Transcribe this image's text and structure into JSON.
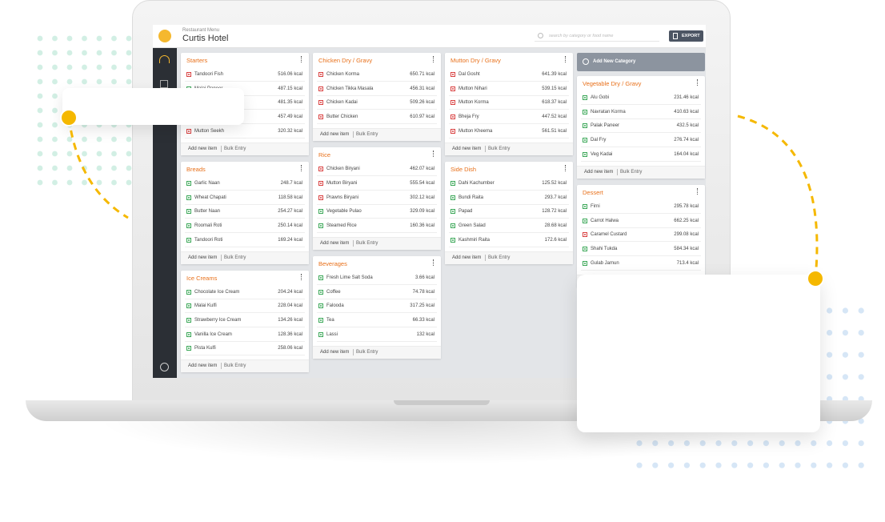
{
  "header": {
    "subtitle": "Restaurant Menu",
    "title": "Curtis Hotel",
    "search_placeholder": "search by category or food name",
    "export": "EXPORT"
  },
  "add_category": "Add New Category",
  "card_actions": {
    "add": "Add new item",
    "bulk": "Bulk Entry"
  },
  "columns": [
    [
      {
        "title": "Starters",
        "items": [
          {
            "name": "Tandoori Fish",
            "kcal": "516.06 kcal",
            "veg": false
          },
          {
            "name": "Malai Paneer",
            "kcal": "487.15 kcal",
            "veg": true
          },
          {
            "kcal": "481.35 kcal",
            "veg": false
          },
          {
            "kcal": "457.49 kcal",
            "veg": false
          },
          {
            "name": "Mutton Seekh",
            "kcal": "320.32 kcal",
            "veg": false
          }
        ]
      },
      {
        "title": "Breads",
        "items": [
          {
            "name": "Garlic Naan",
            "kcal": "248.7 kcal",
            "veg": true
          },
          {
            "name": "Wheat Chapati",
            "kcal": "118.58 kcal",
            "veg": true
          },
          {
            "name": "Butter Naan",
            "kcal": "254.27 kcal",
            "veg": true
          },
          {
            "name": "Roomali Roti",
            "kcal": "250.14 kcal",
            "veg": true
          },
          {
            "name": "Tandoori Roti",
            "kcal": "169.24 kcal",
            "veg": true
          }
        ]
      },
      {
        "title": "Ice Creams",
        "items": [
          {
            "name": "Chocolate Ice Cream",
            "kcal": "204.24 kcal",
            "veg": true
          },
          {
            "name": "Malai Kulfi",
            "kcal": "228.04 kcal",
            "veg": true
          },
          {
            "name": "Strawberry Ice Cream",
            "kcal": "134.26 kcal",
            "veg": true
          },
          {
            "name": "Vanilla Ice Cream",
            "kcal": "128.36 kcal",
            "veg": true
          },
          {
            "name": "Pista Kulfi",
            "kcal": "258.06 kcal",
            "veg": true
          }
        ]
      }
    ],
    [
      {
        "title": "Chicken Dry / Gravy",
        "items": [
          {
            "name": "Chicken Korma",
            "kcal": "650.71 kcal",
            "veg": false
          },
          {
            "name": "Chicken Tikka Masala",
            "kcal": "456.31 kcal",
            "veg": false
          },
          {
            "name": "Chicken Kadai",
            "kcal": "509.26 kcal",
            "veg": false
          },
          {
            "name": "Butter Chicken",
            "kcal": "610.97 kcal",
            "veg": false
          }
        ]
      },
      {
        "title": "Rice",
        "items": [
          {
            "name": "Chicken Biryani",
            "kcal": "462.07 kcal",
            "veg": false
          },
          {
            "name": "Mutton Biryani",
            "kcal": "555.54 kcal",
            "veg": false
          },
          {
            "name": "Prawns Biryani",
            "kcal": "302.12 kcal",
            "veg": false
          },
          {
            "name": "Vegetable Pulao",
            "kcal": "329.09 kcal",
            "veg": true
          },
          {
            "name": "Steamed Rice",
            "kcal": "160.36 kcal",
            "veg": true
          }
        ]
      },
      {
        "title": "Beverages",
        "items": [
          {
            "name": "Fresh Lime Salt Soda",
            "kcal": "3.66 kcal",
            "veg": true
          },
          {
            "name": "Coffee",
            "kcal": "74.78 kcal",
            "veg": true
          },
          {
            "name": "Falooda",
            "kcal": "317.25 kcal",
            "veg": true
          },
          {
            "name": "Tea",
            "kcal": "66.33 kcal",
            "veg": true
          },
          {
            "name": "Lassi",
            "kcal": "132 kcal",
            "veg": true
          }
        ]
      }
    ],
    [
      {
        "title": "Mutton Dry / Gravy",
        "items": [
          {
            "name": "Dal Gosht",
            "kcal": "641.39 kcal",
            "veg": false
          },
          {
            "name": "Mutton Nihari",
            "kcal": "539.15 kcal",
            "veg": false
          },
          {
            "name": "Mutton Korma",
            "kcal": "618.37 kcal",
            "veg": false
          },
          {
            "name": "Bheja Fry",
            "kcal": "447.52 kcal",
            "veg": false
          },
          {
            "name": "Mutton Kheema",
            "kcal": "561.51 kcal",
            "veg": false
          }
        ]
      },
      {
        "title": "Side Dish",
        "items": [
          {
            "name": "Dahi Kachumber",
            "kcal": "125.52 kcal",
            "veg": true
          },
          {
            "name": "Bundi Raita",
            "kcal": "293.7 kcal",
            "veg": true
          },
          {
            "name": "Papad",
            "kcal": "128.72 kcal",
            "veg": true
          },
          {
            "name": "Green Salad",
            "kcal": "28.68 kcal",
            "veg": true
          },
          {
            "name": "Kashmiri Raita",
            "kcal": "172.6 kcal",
            "veg": true
          }
        ]
      }
    ],
    [
      {
        "title": "Vegetable Dry / Gravy",
        "items": [
          {
            "name": "Alu Gobi",
            "kcal": "231.46 kcal",
            "veg": true
          },
          {
            "name": "Navratan Korma",
            "kcal": "410.63 kcal",
            "veg": true
          },
          {
            "name": "Palak Paneer",
            "kcal": "432.5 kcal",
            "veg": true
          },
          {
            "name": "Dal Fry",
            "kcal": "276.74 kcal",
            "veg": true
          },
          {
            "name": "Veg Kadai",
            "kcal": "164.04 kcal",
            "veg": true
          }
        ]
      },
      {
        "title": "Dessert",
        "items": [
          {
            "name": "Firni",
            "kcal": "295.78 kcal",
            "veg": true
          },
          {
            "name": "Carrot Halwa",
            "kcal": "662.25 kcal",
            "veg": true
          },
          {
            "name": "Caramel Custard",
            "kcal": "299.08 kcal",
            "veg": false
          },
          {
            "name": "Shahi Tukda",
            "kcal": "584.34 kcal",
            "veg": true
          },
          {
            "name": "Gulab Jamun",
            "kcal": "713.4 kcal",
            "veg": true
          }
        ]
      }
    ]
  ]
}
